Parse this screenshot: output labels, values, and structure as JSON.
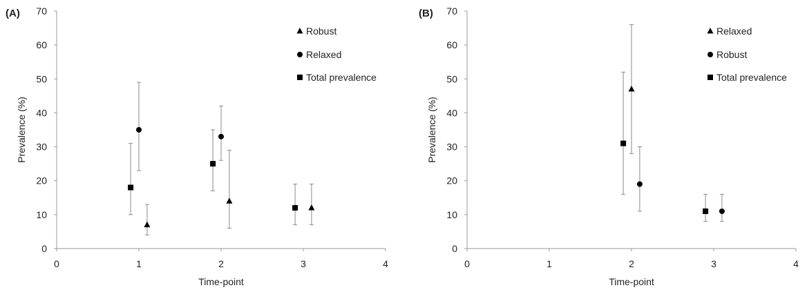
{
  "chart_data": [
    {
      "panel_label": "(A)",
      "type": "scatter",
      "xlabel": "Time-point",
      "ylabel": "Prevalence (%)",
      "xlim": [
        0,
        4
      ],
      "ylim": [
        0,
        70
      ],
      "xticks": [
        "0",
        "1",
        "2",
        "3",
        "4"
      ],
      "yticks": [
        "0",
        "10",
        "20",
        "30",
        "40",
        "50",
        "60",
        "70"
      ],
      "grid": false,
      "legend_position": "top-right",
      "series": [
        {
          "name": "Robust",
          "marker": "triangle",
          "points": [
            {
              "x": 1.1,
              "y": 7,
              "lo": 4,
              "hi": 13
            },
            {
              "x": 2.1,
              "y": 14,
              "lo": 6,
              "hi": 29
            },
            {
              "x": 3.1,
              "y": 12,
              "lo": 7,
              "hi": 19
            }
          ]
        },
        {
          "name": "Relaxed",
          "marker": "circle",
          "points": [
            {
              "x": 1.0,
              "y": 35,
              "lo": 23,
              "hi": 49
            },
            {
              "x": 2.0,
              "y": 33,
              "lo": 26,
              "hi": 42
            }
          ]
        },
        {
          "name": "Total prevalence",
          "marker": "square",
          "points": [
            {
              "x": 0.9,
              "y": 18,
              "lo": 10,
              "hi": 31
            },
            {
              "x": 1.9,
              "y": 25,
              "lo": 17,
              "hi": 35
            },
            {
              "x": 2.9,
              "y": 12,
              "lo": 7,
              "hi": 19
            }
          ]
        }
      ]
    },
    {
      "panel_label": "(B)",
      "type": "scatter",
      "xlabel": "Time-point",
      "ylabel": "Prevalence (%)",
      "xlim": [
        0,
        4
      ],
      "ylim": [
        0,
        70
      ],
      "xticks": [
        "0",
        "1",
        "2",
        "3",
        "4"
      ],
      "yticks": [
        "0",
        "10",
        "20",
        "30",
        "40",
        "50",
        "60",
        "70"
      ],
      "grid": false,
      "legend_position": "top-right",
      "series": [
        {
          "name": "Relaxed",
          "marker": "triangle",
          "points": [
            {
              "x": 2.0,
              "y": 47,
              "lo": 28,
              "hi": 66
            }
          ]
        },
        {
          "name": "Robust",
          "marker": "circle",
          "points": [
            {
              "x": 2.1,
              "y": 19,
              "lo": 11,
              "hi": 30
            },
            {
              "x": 3.1,
              "y": 11,
              "lo": 8,
              "hi": 16
            }
          ]
        },
        {
          "name": "Total prevalence",
          "marker": "square",
          "points": [
            {
              "x": 1.9,
              "y": 31,
              "lo": 16,
              "hi": 52
            },
            {
              "x": 2.9,
              "y": 11,
              "lo": 8,
              "hi": 16
            }
          ]
        }
      ]
    }
  ]
}
